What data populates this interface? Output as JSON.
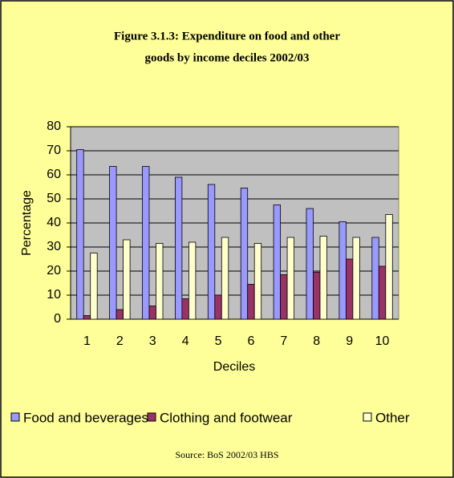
{
  "chart_data": {
    "type": "bar",
    "title": [
      "Figure 3.1.3: Expenditure on food and other",
      "goods by income deciles 2002/03"
    ],
    "x_label": "Deciles",
    "y_label": "Percentage",
    "source": "Source: BoS 2002/03 HBS",
    "categories": [
      "1",
      "2",
      "3",
      "4",
      "5",
      "6",
      "7",
      "8",
      "9",
      "10"
    ],
    "series": [
      {
        "name": "Food and beverages",
        "color": "#9999ff",
        "values": [
          70.5,
          63.5,
          63.5,
          59,
          56,
          54.5,
          47.5,
          46,
          40.5,
          34
        ]
      },
      {
        "name": "Clothing and footwear",
        "color": "#993366",
        "values": [
          1.5,
          4,
          5.5,
          8.5,
          10,
          14.5,
          18.5,
          19.5,
          25,
          22
        ]
      },
      {
        "name": "Other",
        "color": "#ffffcc",
        "values": [
          27.5,
          33,
          31.5,
          32,
          34,
          31.5,
          34,
          34.5,
          34,
          43.5
        ]
      }
    ],
    "ylim": [
      0,
      80
    ],
    "yticks": [
      0,
      10,
      20,
      30,
      40,
      50,
      60,
      70,
      80
    ],
    "grid": true
  }
}
